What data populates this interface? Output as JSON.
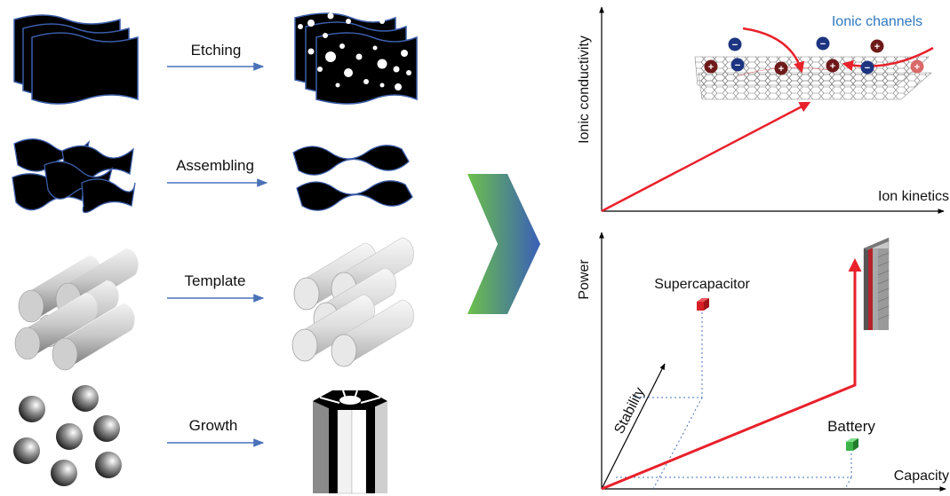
{
  "processes": [
    {
      "id": "etching",
      "label": "Etching"
    },
    {
      "id": "assembling",
      "label": "Assembling"
    },
    {
      "id": "template",
      "label": "Template"
    },
    {
      "id": "growth",
      "label": "Growth"
    }
  ],
  "top_plot": {
    "ylabel": "Ionic conductivity",
    "xlabel": "Ion kinetics",
    "annotation": "Ionic channels"
  },
  "bottom_plot": {
    "ylabel": "Power",
    "xlabel": "Capacity",
    "zlabel": "Stability",
    "supercapacitor_label": "Supercapacitor",
    "battery_label": "Battery"
  },
  "colors": {
    "arrow_blue": "#4a72b8",
    "trend_red": "#e8212b",
    "anion_blue": "#1d3580",
    "cation_red": "#6e1a1a",
    "channels_text": "#2e79c0",
    "supercap_cube": "#d61f26",
    "battery_cube": "#3cb44a",
    "chevron_start": "#6cc04a",
    "chevron_end": "#3a5fb8"
  }
}
